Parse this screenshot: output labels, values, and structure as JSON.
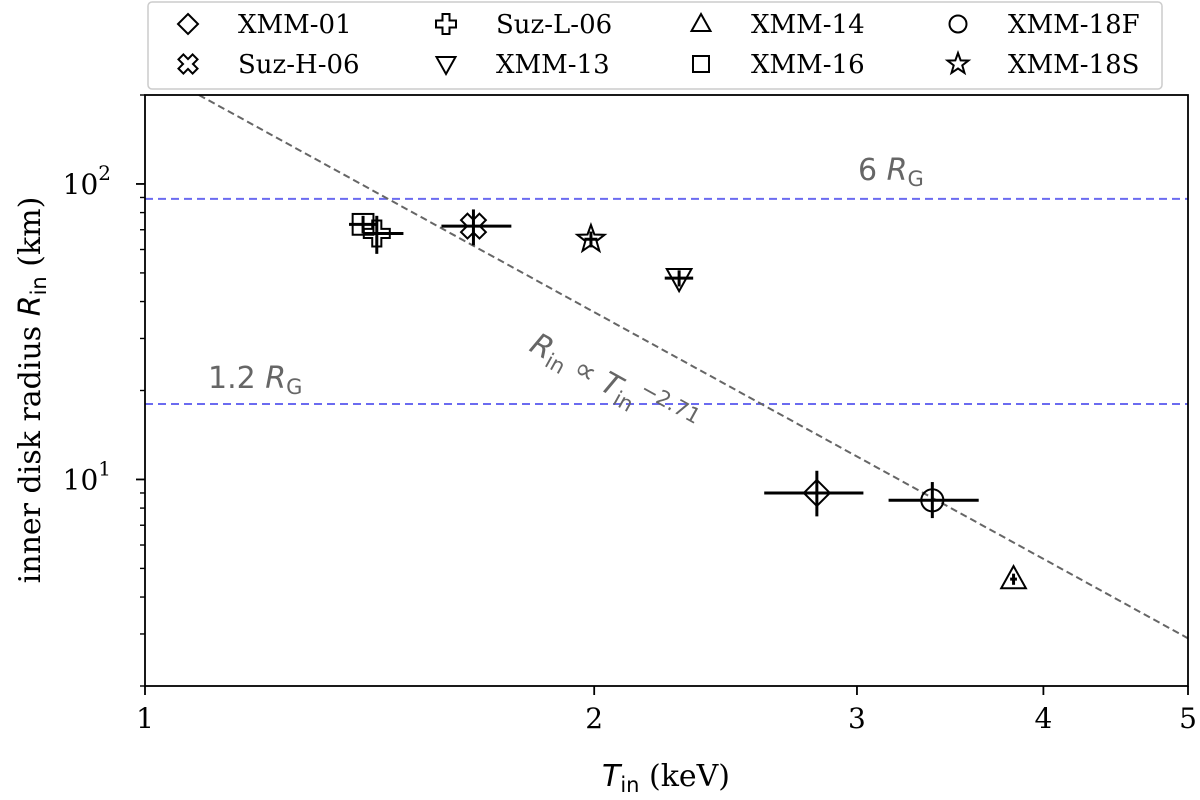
{
  "chart_data": {
    "type": "scatter",
    "x_scale": "log",
    "y_scale": "log",
    "xlim": [
      1,
      5
    ],
    "ylim": [
      2,
      200
    ],
    "xlabel": {
      "main": "T",
      "sub": "in",
      "unit": " (keV)"
    },
    "ylabel": {
      "main": "inner disk radius ",
      "var": "R",
      "sub": "in",
      "unit": " (km)"
    },
    "x_ticks": [
      {
        "value": 1,
        "label": "1"
      },
      {
        "value": 2,
        "label": "2"
      },
      {
        "value": 3,
        "label": "3"
      },
      {
        "value": 4,
        "label": "4"
      },
      {
        "value": 5,
        "label": "5"
      }
    ],
    "y_ticks": [
      {
        "value": 10,
        "base": "10",
        "exp": "1"
      },
      {
        "value": 100,
        "base": "10",
        "exp": "2"
      }
    ],
    "y_minor_ticks": [
      2,
      3,
      4,
      5,
      6,
      7,
      8,
      9,
      20,
      30,
      40,
      50,
      60,
      70,
      80,
      90,
      200
    ],
    "legend_position": "top, above plot",
    "series": [
      {
        "name": "XMM-01",
        "marker": "diamond",
        "x": 2.82,
        "y": 9.0,
        "x_err": [
          0.22,
          0.21
        ],
        "y_err": [
          1.5,
          1.7
        ]
      },
      {
        "name": "Suz-H-06",
        "marker": "xcross",
        "x": 1.66,
        "y": 72.0,
        "x_err": [
          0.08,
          0.1
        ],
        "y_err": [
          10,
          10
        ]
      },
      {
        "name": "Suz-L-06",
        "marker": "plus",
        "x": 1.43,
        "y": 68.0,
        "x_err": [
          0.03,
          0.06
        ],
        "y_err": [
          10,
          10
        ]
      },
      {
        "name": "XMM-13",
        "marker": "triangle-down",
        "x": 2.28,
        "y": 48.0,
        "x_err": [
          0.05,
          0.05
        ],
        "y_err": [
          3,
          3
        ]
      },
      {
        "name": "XMM-14",
        "marker": "triangle-up",
        "x": 3.82,
        "y": 4.6,
        "x_err": [
          0.02,
          0.02
        ],
        "y_err": [
          0.2,
          0.2
        ]
      },
      {
        "name": "XMM-16",
        "marker": "square",
        "x": 1.4,
        "y": 73.0,
        "x_err": [
          0.03,
          0.03
        ],
        "y_err": [
          5,
          5
        ]
      },
      {
        "name": "XMM-18F",
        "marker": "circle",
        "x": 3.37,
        "y": 8.5,
        "x_err": [
          0.22,
          0.25
        ],
        "y_err": [
          1.1,
          1.3
        ]
      },
      {
        "name": "XMM-18S",
        "marker": "star",
        "x": 1.99,
        "y": 65.0,
        "x_err": [
          0.02,
          0.02
        ],
        "y_err": [
          4,
          4
        ]
      }
    ],
    "reference_lines": [
      {
        "label": "6 ",
        "var": "R",
        "sub": "G",
        "y": 89,
        "color": "#6b6bf0"
      },
      {
        "label": "1.2 ",
        "var": "R",
        "sub": "G",
        "y": 18,
        "color": "#6b6bf0"
      }
    ],
    "fit_line": {
      "label_var": "R",
      "label_sub": "in",
      "label_mid": " ∝ ",
      "label_var2": "T",
      "label_sub2": "in",
      "label_exp": "−2.71",
      "slope": -2.71,
      "points": [
        {
          "x": 1.05,
          "y": 220
        },
        {
          "x": 5.0,
          "y": 2.9
        }
      ],
      "color": "#666666"
    },
    "grid": false
  }
}
